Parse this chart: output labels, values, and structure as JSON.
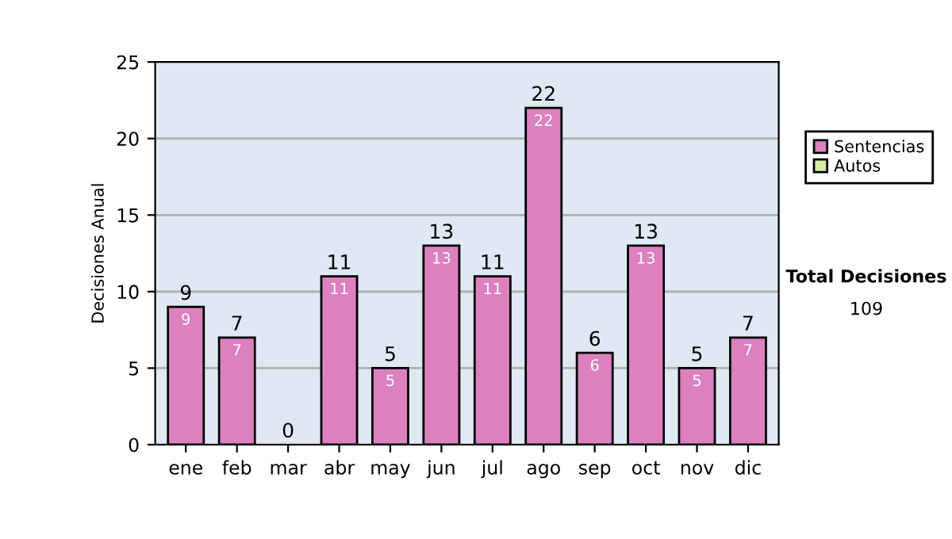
{
  "chart_data": {
    "type": "bar",
    "stacked": true,
    "ylabel": "Decisiones Anual",
    "categories": [
      "ene",
      "feb",
      "mar",
      "abr",
      "may",
      "jun",
      "jul",
      "ago",
      "sep",
      "oct",
      "nov",
      "dic"
    ],
    "series": [
      {
        "name": "Sentencias",
        "color": "#dc80c0",
        "values": [
          9,
          7,
          0,
          11,
          5,
          13,
          11,
          22,
          6,
          13,
          5,
          7
        ],
        "value_labels": [
          "9",
          "7",
          null,
          "11",
          "5",
          "13",
          "11",
          "22",
          "6",
          "13",
          "5",
          "7"
        ]
      },
      {
        "name": "Autos",
        "color": "#d8eca4",
        "values": [
          0,
          0,
          0,
          0,
          0,
          0,
          0,
          0,
          0,
          0,
          0,
          0
        ]
      }
    ],
    "totals": [
      "9",
      "7",
      "0",
      "11",
      "5",
      "13",
      "11",
      "22",
      "6",
      "13",
      "5",
      "7"
    ],
    "ylim": [
      0,
      25
    ],
    "yticks": [
      0,
      5,
      10,
      15,
      20,
      25
    ],
    "grid": "y",
    "legend": "right",
    "annotations": [
      "Total Decisiones",
      "109"
    ]
  }
}
